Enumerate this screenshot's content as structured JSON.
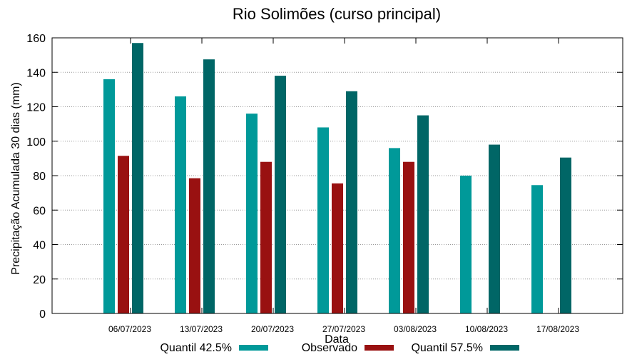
{
  "chart_data": {
    "type": "bar",
    "title": "Rio Solimões (curso principal)",
    "xlabel": "Data",
    "ylabel": "Precipitação Acumulada 30 dias (mm)",
    "ylim": [
      0,
      160
    ],
    "yticks": [
      0,
      20,
      40,
      60,
      80,
      100,
      120,
      140,
      160
    ],
    "grid": true,
    "legend_position": "bottom",
    "categories": [
      "06/07/2023",
      "13/07/2023",
      "20/07/2023",
      "27/07/2023",
      "03/08/2023",
      "10/08/2023",
      "17/08/2023"
    ],
    "series": [
      {
        "name": "Quantil 42.5%",
        "color": "#009999",
        "values": [
          136,
          126,
          116,
          108,
          96,
          80,
          74.5
        ]
      },
      {
        "name": "Observado",
        "color": "#991111",
        "values": [
          91.5,
          78.5,
          88,
          75.5,
          88,
          null,
          null
        ]
      },
      {
        "name": "Quantil 57.5%",
        "color": "#006666",
        "values": [
          157,
          147.5,
          138,
          129,
          115,
          98,
          90.5
        ]
      }
    ]
  }
}
